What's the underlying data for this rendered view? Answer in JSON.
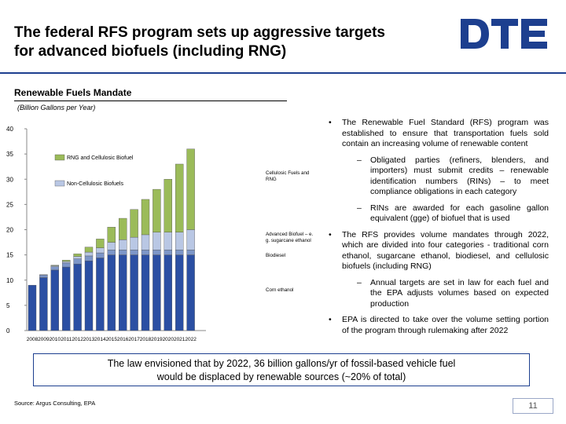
{
  "slide": {
    "title_line1": "The federal RFS program sets up aggressive targets",
    "title_line2": "for advanced biofuels (including RNG)",
    "logo_text": "DTE",
    "chart_title": "Renewable Fuels Mandate",
    "chart_units": "(Billion Gallons per Year)",
    "callout_line1": "The law envisioned that by 2022, 36 billion gallons/yr of fossil-based vehicle fuel",
    "callout_line2": "would be displaced by renewable sources (~20% of total)",
    "source": "Source: Argus Consulting, EPA",
    "page_number": "11"
  },
  "bullets": [
    {
      "level": 1,
      "marker": "•",
      "text": "The Renewable Fuel Standard (RFS) program was established to ensure that transportation fuels sold contain an increasing volume of renewable content"
    },
    {
      "level": 2,
      "marker": "–",
      "text": "Obligated parties (refiners, blenders, and importers) must submit credits – renewable identification numbers (RINs) – to meet compliance obligations in each category"
    },
    {
      "level": 2,
      "marker": "–",
      "text": "RINs are awarded for each gasoline gallon equivalent (gge) of biofuel that is used"
    },
    {
      "level": 1,
      "marker": "•",
      "text": "The RFS provides volume mandates through 2022, which are divided into four categories - traditional corn ethanol, sugarcane ethanol, biodiesel, and cellulosic biofuels (including RNG)"
    },
    {
      "level": 2,
      "marker": "–",
      "text": "Annual targets are set in law for each fuel and the EPA adjusts volumes based on expected production"
    },
    {
      "level": 1,
      "marker": "•",
      "text": "EPA is directed to take over the volume setting portion of the program through rulemaking after 2022"
    }
  ],
  "chart_data": {
    "type": "bar",
    "stacked": true,
    "categories": [
      "2008",
      "2009",
      "2010",
      "2011",
      "2012",
      "2013",
      "2014",
      "2015",
      "2016",
      "2017",
      "2018",
      "2019",
      "2020",
      "2021",
      "2022"
    ],
    "ylim": [
      0,
      40
    ],
    "yticks": [
      0,
      5,
      10,
      15,
      20,
      25,
      30,
      35,
      40
    ],
    "legend": [
      "RNG and Cellulosic Biofuel",
      "Non-Cellulosic Biofuels"
    ],
    "series": [
      {
        "name": "Corn ethanol",
        "color": "#2b4fa3",
        "values": [
          9.0,
          10.5,
          12.0,
          12.6,
          13.2,
          13.8,
          14.4,
          15.0,
          15.0,
          15.0,
          15.0,
          15.0,
          15.0,
          15.0,
          15.0
        ]
      },
      {
        "name": "Biodiesel",
        "color": "#7d96c8",
        "values": [
          0,
          0.5,
          0.65,
          0.8,
          1.0,
          1.0,
          1.0,
          1.0,
          1.0,
          1.0,
          1.0,
          1.0,
          1.0,
          1.0,
          1.0
        ]
      },
      {
        "name": "Advanced Biofuel – e.g. sugarcane ethanol",
        "color": "#b9c7e4",
        "values": [
          0,
          0.1,
          0.2,
          0.3,
          0.5,
          0.75,
          1.0,
          1.5,
          2.0,
          2.5,
          3.0,
          3.5,
          3.5,
          3.5,
          4.0
        ]
      },
      {
        "name": "Cellulosic Fuels and RNG",
        "color": "#9bbb59",
        "values": [
          0,
          0,
          0.1,
          0.25,
          0.5,
          1.0,
          1.75,
          3.0,
          4.25,
          5.5,
          7.0,
          8.5,
          10.5,
          13.5,
          16.0
        ]
      }
    ],
    "series_labels": [
      "Corn ethanol",
      "Biodiesel",
      "Advanced Biofuel – e.g. sugarcane ethanol",
      "Cellulosic Fuels and RNG"
    ],
    "grid": false
  }
}
